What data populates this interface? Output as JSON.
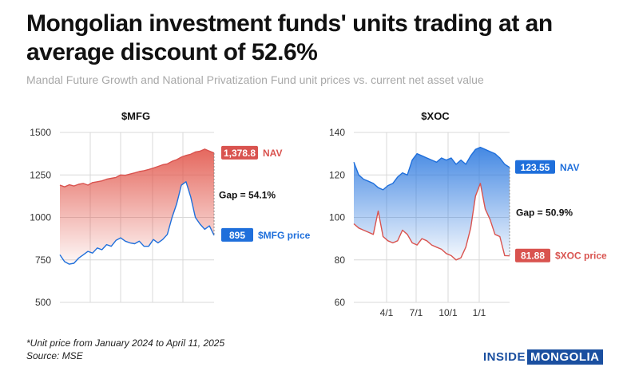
{
  "title": "Mongolian investment funds' units trading at an average discount of 52.6%",
  "subtitle": "Mandal Future Growth and National Privatization Fund unit prices vs. current net asset value",
  "footnote": {
    "line1": "*Unit price from January 2024 to April 11, 2025",
    "line2": "Source: MSE"
  },
  "logo": {
    "part1": "INSIDE",
    "part2": "MONGOLIA"
  },
  "colors": {
    "nav": "#d9534f",
    "price": "#1f6fdb",
    "text": "#111111",
    "grid": "#d8d8d8"
  },
  "chart_data": [
    {
      "type": "line",
      "title": "$MFG",
      "ylim": [
        500,
        1500
      ],
      "yticks": [
        "500",
        "750",
        "1000",
        "1250",
        "1500"
      ],
      "xticks": [],
      "gap_label": "Gap = 54.1%",
      "series": [
        {
          "name": "NAV",
          "end_label": "1,378.8",
          "color": "#d9534f",
          "values": [
            1190,
            1180,
            1192,
            1185,
            1195,
            1200,
            1190,
            1205,
            1210,
            1215,
            1225,
            1230,
            1235,
            1250,
            1248,
            1255,
            1262,
            1270,
            1275,
            1282,
            1290,
            1300,
            1310,
            1315,
            1330,
            1340,
            1355,
            1365,
            1372,
            1385,
            1390,
            1402,
            1390,
            1378.8
          ]
        },
        {
          "name": "$MFG price",
          "end_label": "895",
          "color": "#1f6fdb",
          "values": [
            780,
            740,
            725,
            730,
            760,
            780,
            800,
            790,
            820,
            810,
            840,
            830,
            865,
            880,
            860,
            850,
            845,
            860,
            830,
            830,
            870,
            850,
            870,
            900,
            1000,
            1080,
            1190,
            1210,
            1120,
            1000,
            960,
            930,
            950,
            895
          ]
        }
      ]
    },
    {
      "type": "line",
      "title": "$XOC",
      "ylim": [
        60,
        140
      ],
      "yticks": [
        "60",
        "80",
        "100",
        "120",
        "140"
      ],
      "xticks": [
        "4/1",
        "7/1",
        "10/1",
        "1/1"
      ],
      "gap_label": "Gap = 50.9%",
      "series": [
        {
          "name": "NAV",
          "end_label": "123.55",
          "color": "#1f6fdb",
          "values": [
            126,
            120,
            118,
            117,
            116,
            114,
            113,
            115,
            116,
            119,
            121,
            120,
            127,
            130,
            129,
            128,
            127,
            126,
            128,
            127,
            128,
            125,
            127,
            125,
            129,
            132,
            133,
            132,
            131,
            130,
            128,
            125,
            123.55
          ]
        },
        {
          "name": "$XOC price",
          "end_label": "81.88",
          "color": "#d9534f",
          "values": [
            97,
            95,
            94,
            93,
            92,
            103,
            91,
            89,
            88,
            89,
            94,
            92,
            88,
            87,
            90,
            89,
            87,
            86,
            85,
            83,
            82,
            80,
            81,
            86,
            95,
            110,
            116,
            104,
            99,
            92,
            91,
            82,
            81.88
          ]
        }
      ]
    }
  ]
}
